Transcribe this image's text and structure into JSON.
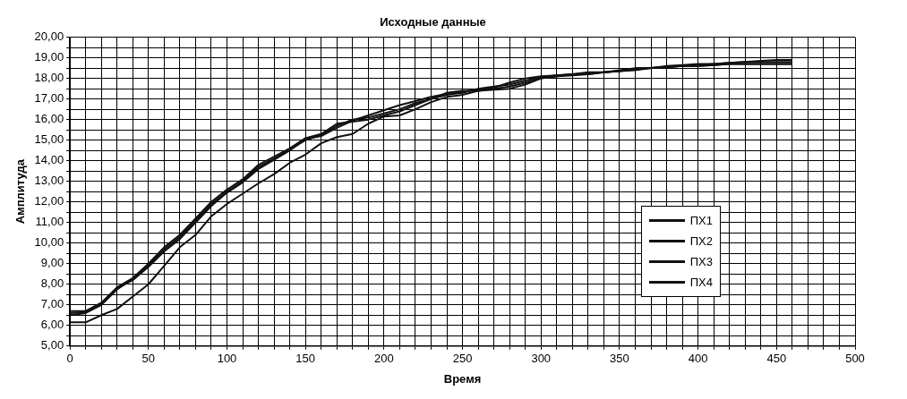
{
  "chart_data": {
    "type": "line",
    "title": "Исходные данные",
    "xlabel": "Время",
    "ylabel": "Амплитуда",
    "x": [
      0,
      10,
      20,
      30,
      40,
      50,
      60,
      70,
      80,
      90,
      100,
      110,
      120,
      130,
      140,
      150,
      160,
      170,
      180,
      190,
      200,
      210,
      220,
      230,
      240,
      250,
      260,
      270,
      280,
      290,
      300,
      310,
      320,
      330,
      340,
      350,
      360,
      370,
      380,
      390,
      400,
      410,
      420,
      430,
      440,
      450,
      460
    ],
    "series": [
      {
        "name": "ПХ1",
        "color": "#111111",
        "values": [
          6.6,
          6.65,
          7.05,
          7.8,
          8.2,
          8.85,
          9.6,
          10.2,
          11.0,
          11.8,
          12.45,
          12.95,
          13.6,
          14.05,
          14.5,
          15.05,
          15.2,
          15.6,
          15.95,
          16.2,
          16.45,
          16.7,
          16.9,
          17.1,
          17.25,
          17.35,
          17.45,
          17.55,
          17.8,
          18.0,
          18.1,
          18.15,
          18.2,
          18.25,
          18.3,
          18.35,
          18.45,
          18.5,
          18.55,
          18.6,
          18.65,
          18.7,
          18.75,
          18.8,
          18.8,
          18.8,
          18.8
        ]
      },
      {
        "name": "ПХ2",
        "color": "#111111",
        "values": [
          6.5,
          6.6,
          7.0,
          7.75,
          8.25,
          8.9,
          9.7,
          10.3,
          11.1,
          11.9,
          12.5,
          13.0,
          13.7,
          14.1,
          14.55,
          15.0,
          15.25,
          15.7,
          16.0,
          16.1,
          16.3,
          16.5,
          16.8,
          17.0,
          17.2,
          17.3,
          17.5,
          17.6,
          17.7,
          17.9,
          18.05,
          18.15,
          18.2,
          18.3,
          18.3,
          18.4,
          18.5,
          18.5,
          18.55,
          18.6,
          18.6,
          18.65,
          18.7,
          18.7,
          18.7,
          18.7,
          18.7
        ]
      },
      {
        "name": "ПХ3",
        "color": "#111111",
        "values": [
          6.7,
          6.7,
          7.1,
          7.85,
          8.3,
          9.0,
          9.8,
          10.4,
          11.2,
          12.0,
          12.6,
          13.1,
          13.8,
          14.2,
          14.6,
          15.1,
          15.3,
          15.8,
          15.9,
          16.0,
          16.2,
          16.4,
          16.7,
          17.0,
          17.3,
          17.4,
          17.4,
          17.5,
          17.6,
          17.8,
          18.0,
          18.1,
          18.2,
          18.2,
          18.3,
          18.35,
          18.45,
          18.5,
          18.6,
          18.65,
          18.7,
          18.7,
          18.75,
          18.8,
          18.85,
          18.9,
          18.9
        ]
      },
      {
        "name": "ПХ4",
        "color": "#111111",
        "values": [
          6.15,
          6.15,
          6.5,
          6.8,
          7.4,
          8.0,
          8.9,
          9.8,
          10.4,
          11.3,
          11.9,
          12.4,
          12.9,
          13.35,
          13.9,
          14.3,
          14.85,
          15.15,
          15.3,
          15.8,
          16.15,
          16.2,
          16.5,
          16.85,
          17.1,
          17.2,
          17.4,
          17.45,
          17.5,
          17.7,
          18.0,
          18.1,
          18.15,
          18.2,
          18.3,
          18.35,
          18.4,
          18.5,
          18.55,
          18.6,
          18.6,
          18.65,
          18.7,
          18.7,
          18.7,
          18.7,
          18.7
        ]
      }
    ],
    "xlim": [
      0,
      500
    ],
    "xticks": [
      0,
      {
        "value": 10,
        "label": null
      },
      {
        "value": 20,
        "label": null
      },
      {
        "value": 30,
        "label": null
      },
      {
        "value": 40,
        "label": null
      },
      50,
      {
        "value": 60,
        "label": null
      },
      {
        "value": 70,
        "label": null
      },
      {
        "value": 80,
        "label": null
      },
      {
        "value": 90,
        "label": null
      },
      100,
      {
        "value": 110,
        "label": null
      },
      {
        "value": 120,
        "label": null
      },
      {
        "value": 130,
        "label": null
      },
      {
        "value": 140,
        "label": null
      },
      150,
      {
        "value": 160,
        "label": null
      },
      {
        "value": 170,
        "label": null
      },
      {
        "value": 180,
        "label": null
      },
      {
        "value": 190,
        "label": null
      },
      200,
      {
        "value": 210,
        "label": null
      },
      {
        "value": 220,
        "label": null
      },
      {
        "value": 230,
        "label": null
      },
      {
        "value": 240,
        "label": null
      },
      250,
      {
        "value": 260,
        "label": null
      },
      {
        "value": 270,
        "label": null
      },
      {
        "value": 280,
        "label": null
      },
      {
        "value": 290,
        "label": null
      },
      300,
      {
        "value": 310,
        "label": null
      },
      {
        "value": 320,
        "label": null
      },
      {
        "value": 330,
        "label": null
      },
      {
        "value": 340,
        "label": null
      },
      350,
      {
        "value": 360,
        "label": null
      },
      {
        "value": 370,
        "label": null
      },
      {
        "value": 380,
        "label": null
      },
      {
        "value": 390,
        "label": null
      },
      400,
      {
        "value": 410,
        "label": null
      },
      {
        "value": 420,
        "label": null
      },
      {
        "value": 430,
        "label": null
      },
      {
        "value": 440,
        "label": null
      },
      450,
      {
        "value": 460,
        "label": null
      },
      {
        "value": 470,
        "label": null
      },
      {
        "value": 480,
        "label": null
      },
      {
        "value": 490,
        "label": null
      },
      500
    ],
    "ylim": [
      5,
      20
    ],
    "yticks": [
      {
        "value": 5,
        "label": "5,00"
      },
      {
        "value": 5.5,
        "label": null
      },
      {
        "value": 6,
        "label": "6,00"
      },
      {
        "value": 6.5,
        "label": null
      },
      {
        "value": 7,
        "label": "7,00"
      },
      {
        "value": 7.5,
        "label": null
      },
      {
        "value": 8,
        "label": "8,00"
      },
      {
        "value": 8.5,
        "label": null
      },
      {
        "value": 9,
        "label": "9,00"
      },
      {
        "value": 9.5,
        "label": null
      },
      {
        "value": 10,
        "label": "10,00"
      },
      {
        "value": 10.5,
        "label": null
      },
      {
        "value": 11,
        "label": "11,00"
      },
      {
        "value": 11.5,
        "label": null
      },
      {
        "value": 12,
        "label": "12,00"
      },
      {
        "value": 12.5,
        "label": null
      },
      {
        "value": 13,
        "label": "13,00"
      },
      {
        "value": 13.5,
        "label": null
      },
      {
        "value": 14,
        "label": "14,00"
      },
      {
        "value": 14.5,
        "label": null
      },
      {
        "value": 15,
        "label": "15,00"
      },
      {
        "value": 15.5,
        "label": null
      },
      {
        "value": 16,
        "label": "16,00"
      },
      {
        "value": 16.5,
        "label": null
      },
      {
        "value": 17,
        "label": "17,00"
      },
      {
        "value": 17.5,
        "label": null
      },
      {
        "value": 18,
        "label": "18,00"
      },
      {
        "value": 18.5,
        "label": null
      },
      {
        "value": 19,
        "label": "19,00"
      },
      {
        "value": 19.5,
        "label": null
      },
      {
        "value": 20,
        "label": "20,00"
      }
    ],
    "grid": true,
    "legend": "right",
    "marker": "none",
    "line_style": "solid"
  }
}
